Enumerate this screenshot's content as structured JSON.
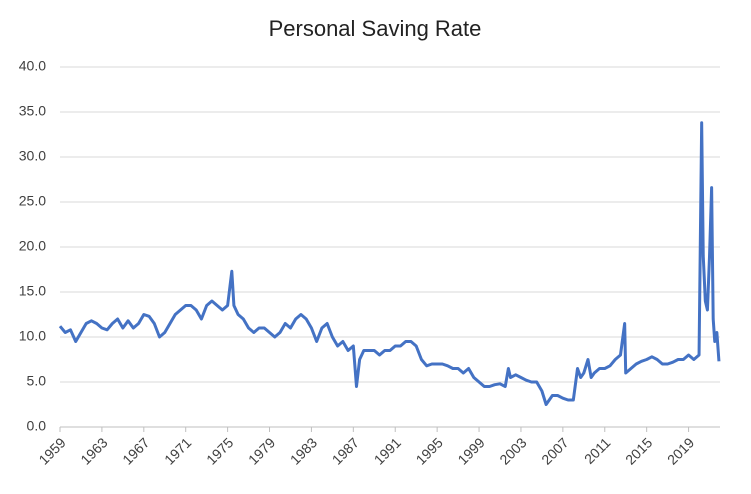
{
  "chart_data": {
    "type": "line",
    "title": "Personal Saving Rate",
    "series": [
      {
        "color": "#4472c4",
        "x": [
          1959,
          1959.5,
          1960,
          1960.5,
          1961,
          1961.5,
          1962,
          1962.5,
          1963,
          1963.5,
          1964,
          1964.5,
          1965,
          1965.5,
          1966,
          1966.5,
          1967,
          1967.5,
          1968,
          1968.5,
          1969,
          1969.5,
          1970,
          1970.5,
          1971,
          1971.5,
          1972,
          1972.5,
          1973,
          1973.5,
          1974,
          1974.5,
          1975,
          1975.4,
          1975.6,
          1976,
          1976.5,
          1977,
          1977.5,
          1978,
          1978.5,
          1979,
          1979.5,
          1980,
          1980.5,
          1981,
          1981.5,
          1982,
          1982.5,
          1983,
          1983.5,
          1984,
          1984.5,
          1985,
          1985.5,
          1986,
          1986.5,
          1987,
          1987.3,
          1987.6,
          1988,
          1988.5,
          1989,
          1989.5,
          1990,
          1990.5,
          1991,
          1991.5,
          1992,
          1992.5,
          1993,
          1993.5,
          1994,
          1994.5,
          1995,
          1995.5,
          1996,
          1996.5,
          1997,
          1997.5,
          1998,
          1998.5,
          1999,
          1999.5,
          2000,
          2000.5,
          2001,
          2001.5,
          2001.8,
          2002,
          2002.5,
          2003,
          2003.5,
          2004,
          2004.5,
          2005,
          2005.4,
          2005.7,
          2006,
          2006.5,
          2007,
          2007.5,
          2008,
          2008.4,
          2008.7,
          2009,
          2009.4,
          2009.7,
          2010,
          2010.5,
          2011,
          2011.5,
          2012,
          2012.5,
          2012.9,
          2013,
          2013.5,
          2014,
          2014.5,
          2015,
          2015.5,
          2016,
          2016.5,
          2017,
          2017.5,
          2018,
          2018.5,
          2019,
          2019.5,
          2020,
          2020.25,
          2020.4,
          2020.6,
          2020.8,
          2021,
          2021.2,
          2021.35,
          2021.5,
          2021.7,
          2021.9
        ],
        "values": [
          11.2,
          10.5,
          10.8,
          9.5,
          10.5,
          11.5,
          11.8,
          11.5,
          11.0,
          10.8,
          11.5,
          12.0,
          11.0,
          11.8,
          11.0,
          11.5,
          12.5,
          12.3,
          11.5,
          10.0,
          10.5,
          11.5,
          12.5,
          13.0,
          13.5,
          13.5,
          13.0,
          12.0,
          13.5,
          14.0,
          13.5,
          13.0,
          13.5,
          17.3,
          13.5,
          12.5,
          12.0,
          11.0,
          10.5,
          11.0,
          11.0,
          10.5,
          10.0,
          10.5,
          11.5,
          11.0,
          12.0,
          12.5,
          12.0,
          11.0,
          9.5,
          11.0,
          11.5,
          10.0,
          9.0,
          9.5,
          8.5,
          9.0,
          4.5,
          7.5,
          8.5,
          8.5,
          8.5,
          8.0,
          8.5,
          8.5,
          9.0,
          9.0,
          9.5,
          9.5,
          9.0,
          7.5,
          6.8,
          7.0,
          7.0,
          7.0,
          6.8,
          6.5,
          6.5,
          6.0,
          6.5,
          5.5,
          5.0,
          4.5,
          4.5,
          4.7,
          4.8,
          4.5,
          6.5,
          5.5,
          5.8,
          5.5,
          5.2,
          5.0,
          5.0,
          4.0,
          2.5,
          3.0,
          3.5,
          3.5,
          3.2,
          3.0,
          3.0,
          6.5,
          5.5,
          6.0,
          7.5,
          5.5,
          6.0,
          6.5,
          6.5,
          6.8,
          7.5,
          8.0,
          11.5,
          6.0,
          6.5,
          7.0,
          7.3,
          7.5,
          7.8,
          7.5,
          7.0,
          7.0,
          7.2,
          7.5,
          7.5,
          8.0,
          7.5,
          8.0,
          33.8,
          19.0,
          14.0,
          13.0,
          19.0,
          26.6,
          12.0,
          9.5,
          10.5,
          7.3
        ]
      }
    ],
    "xlim": [
      1959,
      2022
    ],
    "xticks": [
      1959,
      1963,
      1967,
      1971,
      1975,
      1979,
      1983,
      1987,
      1991,
      1995,
      1999,
      2003,
      2007,
      2011,
      2015,
      2019
    ],
    "ylim": [
      0,
      40
    ],
    "yticks": [
      {
        "value": 0,
        "label": "0.0"
      },
      {
        "value": 5,
        "label": "5.0"
      },
      {
        "value": 10,
        "label": "10.0"
      },
      {
        "value": 15,
        "label": "15.0"
      },
      {
        "value": 20,
        "label": "20.0"
      },
      {
        "value": 25,
        "label": "25.0"
      },
      {
        "value": 30,
        "label": "30.0"
      },
      {
        "value": 35,
        "label": "35.0"
      },
      {
        "value": 40,
        "label": "40.0"
      }
    ],
    "grid": true
  }
}
